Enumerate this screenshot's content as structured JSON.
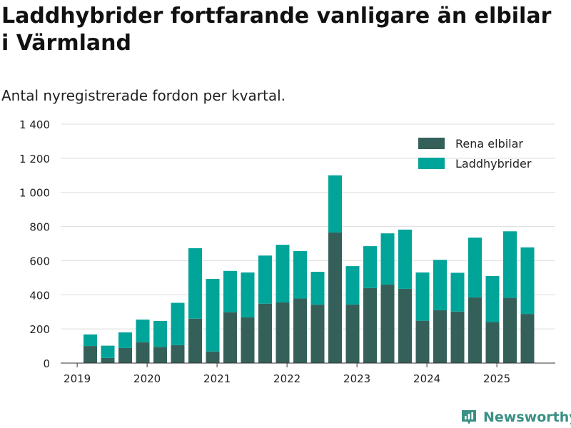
{
  "title": "Laddhybrider fortfarande vanligare än elbilar i Värmland",
  "subtitle": "Antal nyregistrerade fordon per kvartal.",
  "brand": "Newsworthy",
  "colors": {
    "elbilar": "#35605a",
    "laddhybrider": "#00a499",
    "grid": "#dddddd",
    "brand": "#3b8f84"
  },
  "chart_data": {
    "type": "bar",
    "stacked": true,
    "title": "Laddhybrider fortfarande vanligare än elbilar i Värmland",
    "subtitle": "Antal nyregistrerade fordon per kvartal.",
    "xlabel": "",
    "ylabel": "",
    "ylim": [
      0,
      1400
    ],
    "yticks": [
      0,
      200,
      400,
      600,
      800,
      1000,
      1200,
      1400
    ],
    "ytick_labels": [
      "0",
      "200",
      "400",
      "600",
      "800",
      "1 000",
      "1 200",
      "1 400"
    ],
    "xtick_labels": [
      "2019",
      "2020",
      "2021",
      "2022",
      "2023",
      "2024",
      "2025"
    ],
    "xtick_positions": [
      -0.75,
      3.25,
      7.25,
      11.25,
      15.25,
      19.25,
      23.25
    ],
    "grid": true,
    "legend_position": "top-right",
    "categories": [
      "2019 Q2",
      "2019 Q3",
      "2019 Q4",
      "2020 Q1",
      "2020 Q2",
      "2020 Q3",
      "2020 Q4",
      "2021 Q1",
      "2021 Q2",
      "2021 Q3",
      "2021 Q4",
      "2022 Q1",
      "2022 Q2",
      "2022 Q3",
      "2022 Q4",
      "2023 Q1",
      "2023 Q2",
      "2023 Q3",
      "2023 Q4",
      "2024 Q1",
      "2024 Q2",
      "2024 Q3",
      "2024 Q4",
      "2025 Q1",
      "2025 Q2",
      "2025 Q3"
    ],
    "series": [
      {
        "name": "Rena elbilar",
        "color": "#35605a",
        "values": [
          100,
          30,
          88,
          122,
          95,
          105,
          260,
          68,
          298,
          268,
          348,
          355,
          378,
          342,
          765,
          343,
          440,
          460,
          435,
          248,
          310,
          302,
          385,
          240,
          382,
          288
        ]
      },
      {
        "name": "Laddhybrider",
        "color": "#00a499",
        "values": [
          68,
          72,
          92,
          133,
          152,
          248,
          413,
          425,
          242,
          263,
          282,
          338,
          278,
          193,
          335,
          225,
          245,
          300,
          347,
          283,
          295,
          227,
          350,
          270,
          390,
          390
        ]
      }
    ]
  }
}
